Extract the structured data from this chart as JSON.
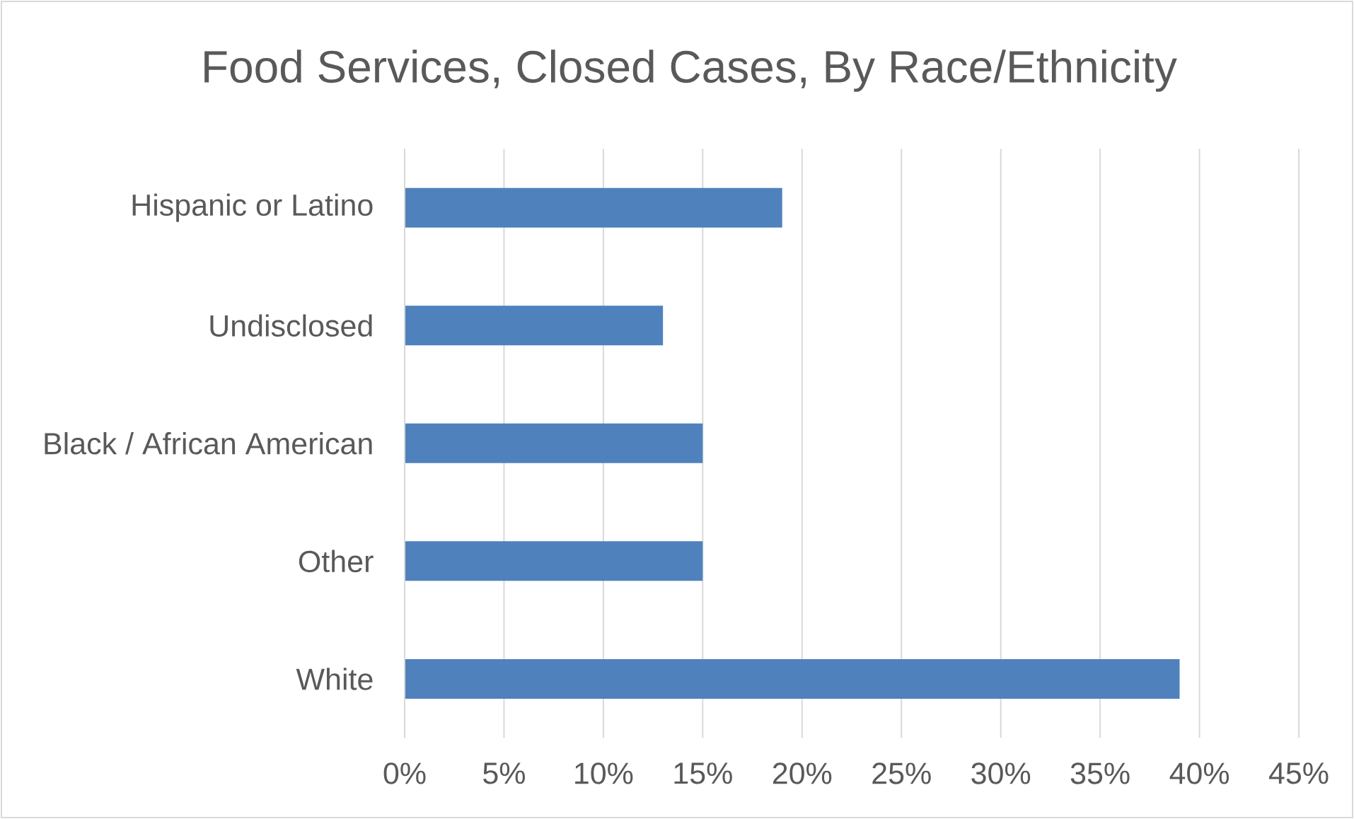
{
  "chart_data": {
    "type": "bar",
    "orientation": "horizontal",
    "title": "Food Services, Closed Cases, By Race/Ethnicity",
    "categories": [
      "Hispanic or Latino",
      "Undisclosed",
      "Black / African American",
      "Other",
      "White"
    ],
    "values": [
      19,
      13,
      15,
      15,
      39
    ],
    "color": "#4f81bd",
    "xlim": [
      0,
      45
    ],
    "xticks": [
      {
        "value": 0,
        "label": "0%"
      },
      {
        "value": 5,
        "label": "5%"
      },
      {
        "value": 10,
        "label": "10%"
      },
      {
        "value": 15,
        "label": "15%"
      },
      {
        "value": 20,
        "label": "20%"
      },
      {
        "value": 25,
        "label": "25%"
      },
      {
        "value": 30,
        "label": "30%"
      },
      {
        "value": 35,
        "label": "35%"
      },
      {
        "value": 40,
        "label": "40%"
      },
      {
        "value": 45,
        "label": "45%"
      }
    ],
    "grid": "x"
  }
}
